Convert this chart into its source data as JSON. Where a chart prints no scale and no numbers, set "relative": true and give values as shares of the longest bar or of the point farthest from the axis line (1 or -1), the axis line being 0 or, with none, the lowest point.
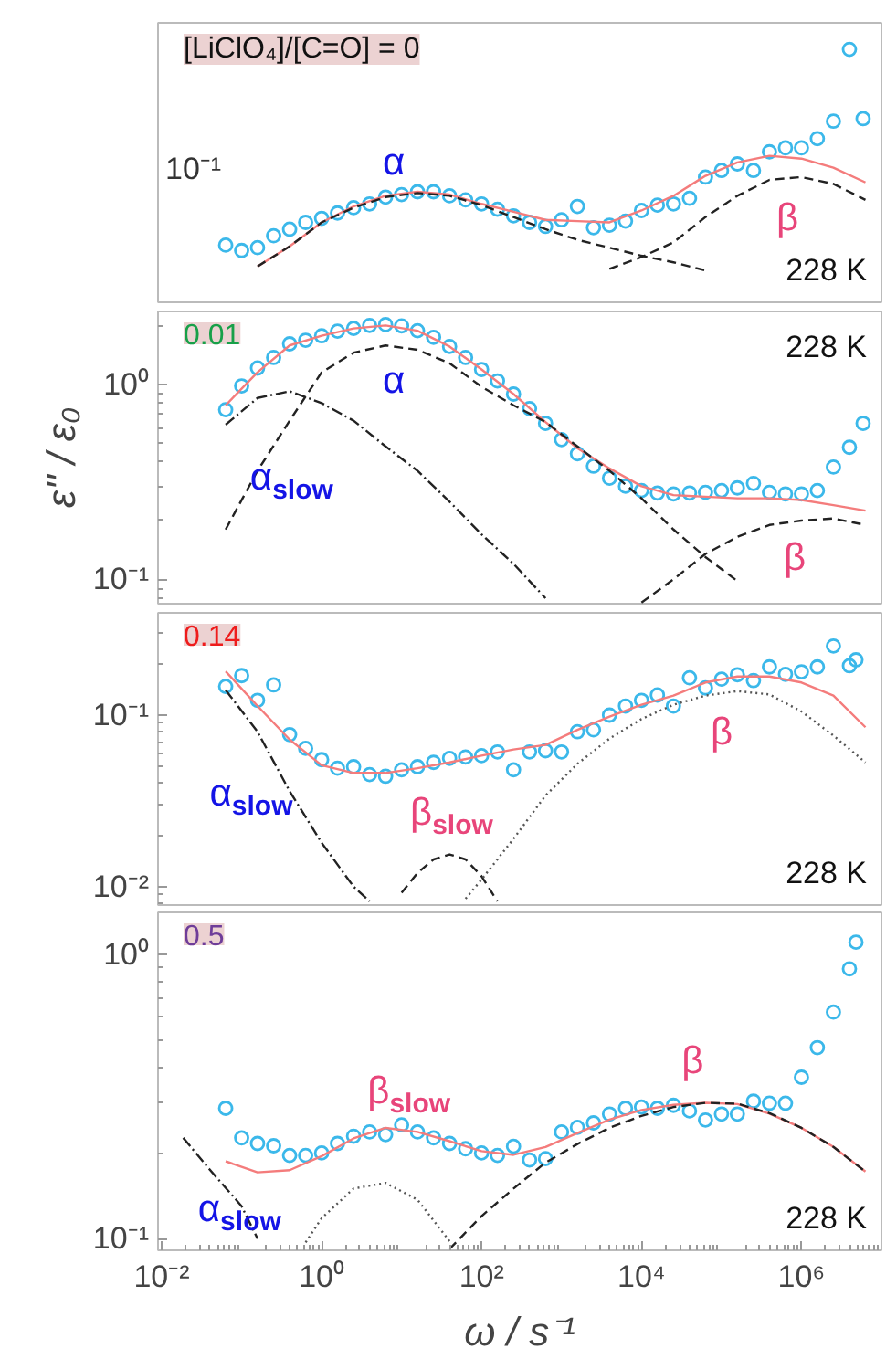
{
  "chart_data": [
    {
      "type": "scatter",
      "title": "[LiClO₄]/[C=O] = 0",
      "log": "x",
      "tick_labels": "y",
      "xlim": [
        0.009,
        10000000
      ],
      "relative": true,
      "annotations": [
        "α",
        "β",
        "228 K",
        "10⁻¹"
      ],
      "series": [
        {
          "marker": "circle",
          "color": "#3bb8ea",
          "x": [
            0.0631,
            0.1,
            0.158,
            0.251,
            0.398,
            0.631,
            1,
            1.58,
            2.51,
            3.98,
            6.31,
            10,
            15.8,
            25.1,
            39.8,
            63.1,
            100,
            158,
            251,
            398,
            631,
            1000,
            1580,
            2510,
            3980,
            6310,
            10000,
            15800,
            25100,
            39800,
            63100,
            100000,
            158000,
            251000,
            398000,
            631000,
            1000000,
            1580000,
            2510000,
            3980000,
            5900000
          ],
          "values": [
            0.226,
            0.205,
            0.216,
            0.263,
            0.289,
            0.316,
            0.332,
            0.353,
            0.374,
            0.389,
            0.416,
            0.426,
            0.437,
            0.437,
            0.421,
            0.405,
            0.389,
            0.368,
            0.342,
            0.316,
            0.3,
            0.326,
            0.379,
            0.295,
            0.305,
            0.321,
            0.363,
            0.384,
            0.389,
            0.411,
            0.495,
            0.521,
            0.547,
            0.521,
            0.595,
            0.611,
            0.611,
            0.647,
            0.716,
            1,
            0.726
          ]
        },
        {
          "type": "line",
          "color": "#f47c7c",
          "line_style": "solid",
          "x": [
            0.158,
            0.398,
            1,
            2.51,
            6.31,
            15.8,
            39.8,
            100,
            251,
            631,
            1580,
            3980,
            10000,
            25100,
            63100,
            158000,
            398000,
            1000000,
            2510000,
            6310000
          ],
          "values": [
            0.142,
            0.221,
            0.316,
            0.379,
            0.421,
            0.437,
            0.426,
            0.389,
            0.358,
            0.326,
            0.321,
            0.316,
            0.363,
            0.421,
            0.5,
            0.553,
            0.579,
            0.568,
            0.532,
            0.474
          ]
        },
        {
          "type": "line",
          "color": "#222222",
          "line_style": "dashed",
          "x": [
            0.158,
            0.398,
            1,
            2.51,
            6.31,
            15.8,
            39.8,
            100,
            251,
            631,
            1580,
            3980,
            10000,
            25100,
            63100
          ],
          "values": [
            0.142,
            0.221,
            0.316,
            0.374,
            0.416,
            0.432,
            0.421,
            0.384,
            0.337,
            0.289,
            0.247,
            0.216,
            0.184,
            0.158,
            0.126
          ]
        },
        {
          "type": "line",
          "color": "#222222",
          "line_style": "dashed",
          "x": [
            3980,
            10000,
            25100,
            63100,
            158000,
            398000,
            1000000,
            2510000,
            6310000
          ],
          "values": [
            0.132,
            0.179,
            0.237,
            0.337,
            0.421,
            0.484,
            0.495,
            0.468,
            0.405
          ]
        }
      ]
    },
    {
      "type": "scatter",
      "title": "0.01",
      "log": "xy",
      "tick_labels": "y",
      "ylabel": "ε'' / ε₀",
      "xlim": [
        0.009,
        10000000
      ],
      "ylim": [
        0.075,
        2.36
      ],
      "yticks": [
        {
          "value": 1,
          "label": "10⁰"
        },
        {
          "value": 0.1,
          "label": "10⁻¹"
        }
      ],
      "annotations": [
        "α",
        "α$_{slow}$",
        "β",
        "228 K"
      ],
      "series": [
        {
          "marker": "circle",
          "color": "#3bb8ea",
          "x": [
            0.0631,
            0.1,
            0.158,
            0.251,
            0.398,
            0.631,
            1,
            1.58,
            2.51,
            3.98,
            6.31,
            10,
            15.8,
            25.1,
            39.8,
            63.1,
            100,
            158,
            251,
            398,
            631,
            1000,
            1580,
            2510,
            3980,
            6310,
            10000,
            15800,
            25100,
            39800,
            63100,
            100000,
            158000,
            251000,
            398000,
            631000,
            1000000,
            1580000,
            2510000,
            3980000,
            5900000
          ],
          "values": [
            0.74,
            0.98,
            1.21,
            1.37,
            1.61,
            1.68,
            1.77,
            1.87,
            1.93,
            2.0,
            2.02,
            1.99,
            1.88,
            1.74,
            1.56,
            1.37,
            1.19,
            1.04,
            0.89,
            0.75,
            0.63,
            0.52,
            0.44,
            0.38,
            0.33,
            0.3,
            0.285,
            0.277,
            0.274,
            0.277,
            0.279,
            0.285,
            0.294,
            0.31,
            0.279,
            0.274,
            0.274,
            0.285,
            0.376,
            0.475,
            0.63
          ]
        },
        {
          "type": "line",
          "color": "#f47c7c",
          "line_style": "solid",
          "x": [
            0.0631,
            0.158,
            0.398,
            1,
            2.51,
            6.31,
            15.8,
            39.8,
            100,
            251,
            631,
            1580,
            3980,
            10000,
            25100,
            63100,
            158000,
            398000,
            1000000,
            2510000,
            6310000
          ],
          "values": [
            0.78,
            1.15,
            1.58,
            1.77,
            1.93,
            2.0,
            1.88,
            1.56,
            1.19,
            0.89,
            0.64,
            0.47,
            0.37,
            0.3,
            0.27,
            0.265,
            0.26,
            0.26,
            0.255,
            0.24,
            0.225
          ]
        },
        {
          "type": "line",
          "color": "#222222",
          "line_style": "dashed",
          "x": [
            0.0631,
            0.158,
            0.398,
            1,
            2.51,
            6.31,
            15.8,
            39.8,
            100,
            251,
            631,
            1580,
            3980,
            10000,
            25100,
            63100,
            158000
          ],
          "values": [
            0.18,
            0.36,
            0.65,
            1.15,
            1.45,
            1.58,
            1.5,
            1.28,
            0.97,
            0.78,
            0.64,
            0.48,
            0.36,
            0.26,
            0.18,
            0.13,
            0.098
          ]
        },
        {
          "type": "line",
          "color": "#222222",
          "line_style": "dashdot",
          "x": [
            0.0631,
            0.158,
            0.398,
            1,
            2.51,
            6.31,
            15.8,
            39.8,
            100,
            251,
            631
          ],
          "values": [
            0.62,
            0.85,
            0.92,
            0.8,
            0.65,
            0.48,
            0.36,
            0.25,
            0.17,
            0.12,
            0.08
          ]
        },
        {
          "type": "line",
          "color": "#222222",
          "line_style": "dashed",
          "x": [
            10000,
            25100,
            63100,
            158000,
            398000,
            1000000,
            2510000,
            6310000
          ],
          "values": [
            0.076,
            0.1,
            0.135,
            0.165,
            0.19,
            0.2,
            0.205,
            0.19
          ]
        }
      ]
    },
    {
      "type": "scatter",
      "title": "0.14",
      "log": "xy",
      "tick_labels": "y",
      "xlim": [
        0.009,
        10000000
      ],
      "ylim": [
        0.0078,
        0.395
      ],
      "yticks": [
        {
          "value": 0.1,
          "label": "10⁻¹"
        },
        {
          "value": 0.01,
          "label": "10⁻²"
        }
      ],
      "annotations": [
        "α$_{slow}$",
        "β$_{slow}$",
        "β",
        "228 K"
      ],
      "series": [
        {
          "marker": "circle",
          "color": "#3bb8ea",
          "x": [
            0.0631,
            0.1,
            0.158,
            0.251,
            0.398,
            0.631,
            1,
            1.58,
            2.51,
            3.98,
            6.31,
            10,
            15.8,
            25.1,
            39.8,
            63.1,
            100,
            158,
            251,
            398,
            631,
            1000,
            1580,
            2510,
            3980,
            6310,
            10000,
            15800,
            25100,
            39800,
            63100,
            100000,
            158000,
            251000,
            398000,
            631000,
            1000000,
            1580000,
            2510000,
            3980000,
            4800000
          ],
          "values": [
            0.147,
            0.17,
            0.122,
            0.15,
            0.077,
            0.064,
            0.055,
            0.049,
            0.05,
            0.045,
            0.044,
            0.048,
            0.05,
            0.053,
            0.056,
            0.057,
            0.058,
            0.061,
            0.048,
            0.061,
            0.062,
            0.061,
            0.08,
            0.082,
            0.1,
            0.113,
            0.122,
            0.131,
            0.113,
            0.165,
            0.144,
            0.162,
            0.172,
            0.159,
            0.191,
            0.173,
            0.179,
            0.191,
            0.253,
            0.194,
            0.21
          ]
        },
        {
          "type": "line",
          "color": "#f47c7c",
          "line_style": "solid",
          "x": [
            0.0631,
            0.158,
            0.398,
            1,
            2.51,
            6.31,
            15.8,
            39.8,
            100,
            251,
            631,
            1580,
            3980,
            10000,
            25100,
            63100,
            158000,
            398000,
            1000000,
            2510000,
            6310000
          ],
          "values": [
            0.18,
            0.113,
            0.072,
            0.051,
            0.046,
            0.046,
            0.049,
            0.053,
            0.058,
            0.063,
            0.067,
            0.082,
            0.098,
            0.115,
            0.13,
            0.155,
            0.168,
            0.168,
            0.155,
            0.13,
            0.085
          ]
        },
        {
          "type": "line",
          "color": "#222222",
          "line_style": "dashdot",
          "x": [
            0.0631,
            0.158,
            0.398,
            1,
            2.51,
            3.98
          ],
          "values": [
            0.14,
            0.08,
            0.036,
            0.018,
            0.01,
            0.0082
          ]
        },
        {
          "type": "line",
          "color": "#222222",
          "line_style": "dashed",
          "x": [
            10,
            15.8,
            25.1,
            39.8,
            63.1,
            100,
            158
          ],
          "values": [
            0.0092,
            0.012,
            0.0144,
            0.0154,
            0.0144,
            0.0115,
            0.0082
          ]
        },
        {
          "type": "line",
          "color": "#555555",
          "line_style": "dotted",
          "x": [
            63.1,
            100,
            251,
            631,
            1580,
            3980,
            10000,
            25100,
            63100,
            158000,
            398000,
            1000000,
            2510000,
            6310000
          ],
          "values": [
            0.0085,
            0.011,
            0.019,
            0.034,
            0.052,
            0.073,
            0.095,
            0.115,
            0.13,
            0.138,
            0.132,
            0.105,
            0.076,
            0.053
          ]
        }
      ]
    },
    {
      "type": "scatter",
      "title": "0.5",
      "log": "xy",
      "xlabel": "ω / s⁻¹",
      "xlim": [
        0.009,
        10000000
      ],
      "xticks": [
        {
          "value": 0.01,
          "label": "10⁻²"
        },
        {
          "value": 1,
          "label": "10⁰"
        },
        {
          "value": 100,
          "label": "10²"
        },
        {
          "value": 10000,
          "label": "10⁴"
        },
        {
          "value": 1000000,
          "label": "10⁶"
        }
      ],
      "ylim": [
        0.091,
        1.4
      ],
      "yticks": [
        {
          "value": 1,
          "label": "10⁰"
        },
        {
          "value": 0.1,
          "label": "10⁻¹"
        }
      ],
      "annotations": [
        "α$_{slow}$",
        "β$_{slow}$",
        "β",
        "228 K"
      ],
      "series": [
        {
          "marker": "circle",
          "color": "#3bb8ea",
          "x": [
            0.0631,
            0.1,
            0.158,
            0.251,
            0.398,
            0.631,
            1,
            1.58,
            2.51,
            3.98,
            6.31,
            10,
            15.8,
            25.1,
            39.8,
            63.1,
            100,
            158,
            251,
            398,
            631,
            1000,
            1580,
            2510,
            3980,
            6310,
            10000,
            15800,
            25100,
            39800,
            63100,
            100000,
            158000,
            251000,
            398000,
            631000,
            1000000,
            1580000,
            2510000,
            3980000,
            4800000
          ],
          "values": [
            0.287,
            0.226,
            0.216,
            0.212,
            0.196,
            0.196,
            0.2,
            0.216,
            0.229,
            0.237,
            0.232,
            0.251,
            0.237,
            0.226,
            0.216,
            0.207,
            0.2,
            0.196,
            0.211,
            0.189,
            0.191,
            0.237,
            0.246,
            0.255,
            0.274,
            0.287,
            0.29,
            0.287,
            0.294,
            0.281,
            0.261,
            0.274,
            0.274,
            0.304,
            0.299,
            0.299,
            0.369,
            0.469,
            0.625,
            0.887,
            1.1
          ]
        },
        {
          "type": "line",
          "color": "#f47c7c",
          "line_style": "solid",
          "x": [
            0.0631,
            0.158,
            0.398,
            1,
            2.51,
            6.31,
            15.8,
            39.8,
            100,
            251,
            631,
            1580,
            3980,
            10000,
            25100,
            63100,
            158000,
            398000,
            1000000,
            2510000,
            6310000
          ],
          "values": [
            0.187,
            0.171,
            0.174,
            0.195,
            0.225,
            0.245,
            0.237,
            0.22,
            0.203,
            0.197,
            0.21,
            0.235,
            0.262,
            0.283,
            0.295,
            0.3,
            0.297,
            0.275,
            0.245,
            0.21,
            0.172
          ]
        },
        {
          "type": "line",
          "color": "#222222",
          "line_style": "dashdot",
          "x": [
            0.0186,
            0.0398,
            0.1,
            0.158
          ],
          "values": [
            0.226,
            0.175,
            0.13,
            0.1
          ]
        },
        {
          "type": "line",
          "color": "#555555",
          "line_style": "dotted",
          "x": [
            0.631,
            1,
            2.51,
            6.31,
            15.8,
            39.8
          ],
          "values": [
            0.097,
            0.118,
            0.15,
            0.157,
            0.137,
            0.098
          ]
        },
        {
          "type": "line",
          "color": "#222222",
          "line_style": "dashed",
          "x": [
            39.8,
            100,
            251,
            631,
            1580,
            3980,
            10000,
            25100,
            63100,
            158000,
            398000,
            1000000,
            2510000,
            6310000
          ],
          "values": [
            0.092,
            0.12,
            0.15,
            0.185,
            0.215,
            0.245,
            0.27,
            0.29,
            0.3,
            0.298,
            0.276,
            0.245,
            0.21,
            0.172
          ]
        }
      ]
    }
  ]
}
